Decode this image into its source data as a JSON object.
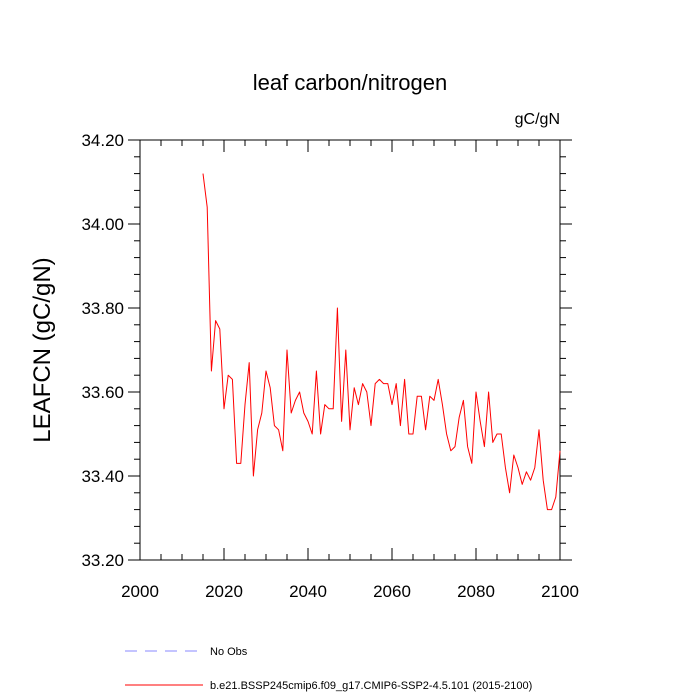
{
  "chart_data": {
    "type": "line",
    "title": "leaf carbon/nitrogen",
    "units_label": "gC/gN",
    "xlabel": "",
    "ylabel": "LEAFCN  (gC/gN)",
    "xlim": [
      2000,
      2100
    ],
    "ylim": [
      33.2,
      34.2
    ],
    "x_ticks": [
      2000,
      2020,
      2040,
      2060,
      2080,
      2100
    ],
    "x_tick_labels": [
      "2000",
      "2020",
      "2040",
      "2060",
      "2080",
      "2100"
    ],
    "y_ticks": [
      33.2,
      33.4,
      33.6,
      33.8,
      34.0,
      34.2
    ],
    "y_tick_labels": [
      "33.20",
      "33.40",
      "33.60",
      "33.80",
      "34.00",
      "34.20"
    ],
    "grid": false,
    "legend_position": "bottom",
    "series": [
      {
        "name": "b.e21.BSSP245cmip6.f09_g17.CMIP6-SSP2-4.5.101 (2015-2100)",
        "color": "#ff0000",
        "style": "solid",
        "x": [
          2015,
          2016,
          2017,
          2018,
          2019,
          2020,
          2021,
          2022,
          2023,
          2024,
          2025,
          2026,
          2027,
          2028,
          2029,
          2030,
          2031,
          2032,
          2033,
          2034,
          2035,
          2036,
          2037,
          2038,
          2039,
          2040,
          2041,
          2042,
          2043,
          2044,
          2045,
          2046,
          2047,
          2048,
          2049,
          2050,
          2051,
          2052,
          2053,
          2054,
          2055,
          2056,
          2057,
          2058,
          2059,
          2060,
          2061,
          2062,
          2063,
          2064,
          2065,
          2066,
          2067,
          2068,
          2069,
          2070,
          2071,
          2072,
          2073,
          2074,
          2075,
          2076,
          2077,
          2078,
          2079,
          2080,
          2081,
          2082,
          2083,
          2084,
          2085,
          2086,
          2087,
          2088,
          2089,
          2090,
          2091,
          2092,
          2093,
          2094,
          2095,
          2096,
          2097,
          2098,
          2099,
          2100
        ],
        "y": [
          34.12,
          34.04,
          33.65,
          33.77,
          33.75,
          33.56,
          33.64,
          33.63,
          33.43,
          33.43,
          33.57,
          33.67,
          33.4,
          33.51,
          33.55,
          33.65,
          33.61,
          33.52,
          33.51,
          33.46,
          33.7,
          33.55,
          33.58,
          33.6,
          33.55,
          33.53,
          33.5,
          33.65,
          33.5,
          33.57,
          33.56,
          33.56,
          33.8,
          33.53,
          33.7,
          33.51,
          33.61,
          33.57,
          33.62,
          33.6,
          33.52,
          33.62,
          33.63,
          33.62,
          33.62,
          33.57,
          33.62,
          33.52,
          33.63,
          33.5,
          33.5,
          33.59,
          33.59,
          33.51,
          33.59,
          33.58,
          33.63,
          33.57,
          33.5,
          33.46,
          33.47,
          33.54,
          33.58,
          33.47,
          33.43,
          33.6,
          33.53,
          33.47,
          33.6,
          33.48,
          33.5,
          33.5,
          33.42,
          33.36,
          33.45,
          33.42,
          33.38,
          33.41,
          33.39,
          33.42,
          33.51,
          33.39,
          33.32,
          33.32,
          33.35,
          33.46
        ]
      }
    ],
    "legend": [
      {
        "label": "No Obs",
        "color": "#8a8aff",
        "style": "dashed"
      },
      {
        "label": "b.e21.BSSP245cmip6.f09_g17.CMIP6-SSP2-4.5.101 (2015-2100)",
        "color": "#ff0000",
        "style": "solid"
      }
    ]
  }
}
